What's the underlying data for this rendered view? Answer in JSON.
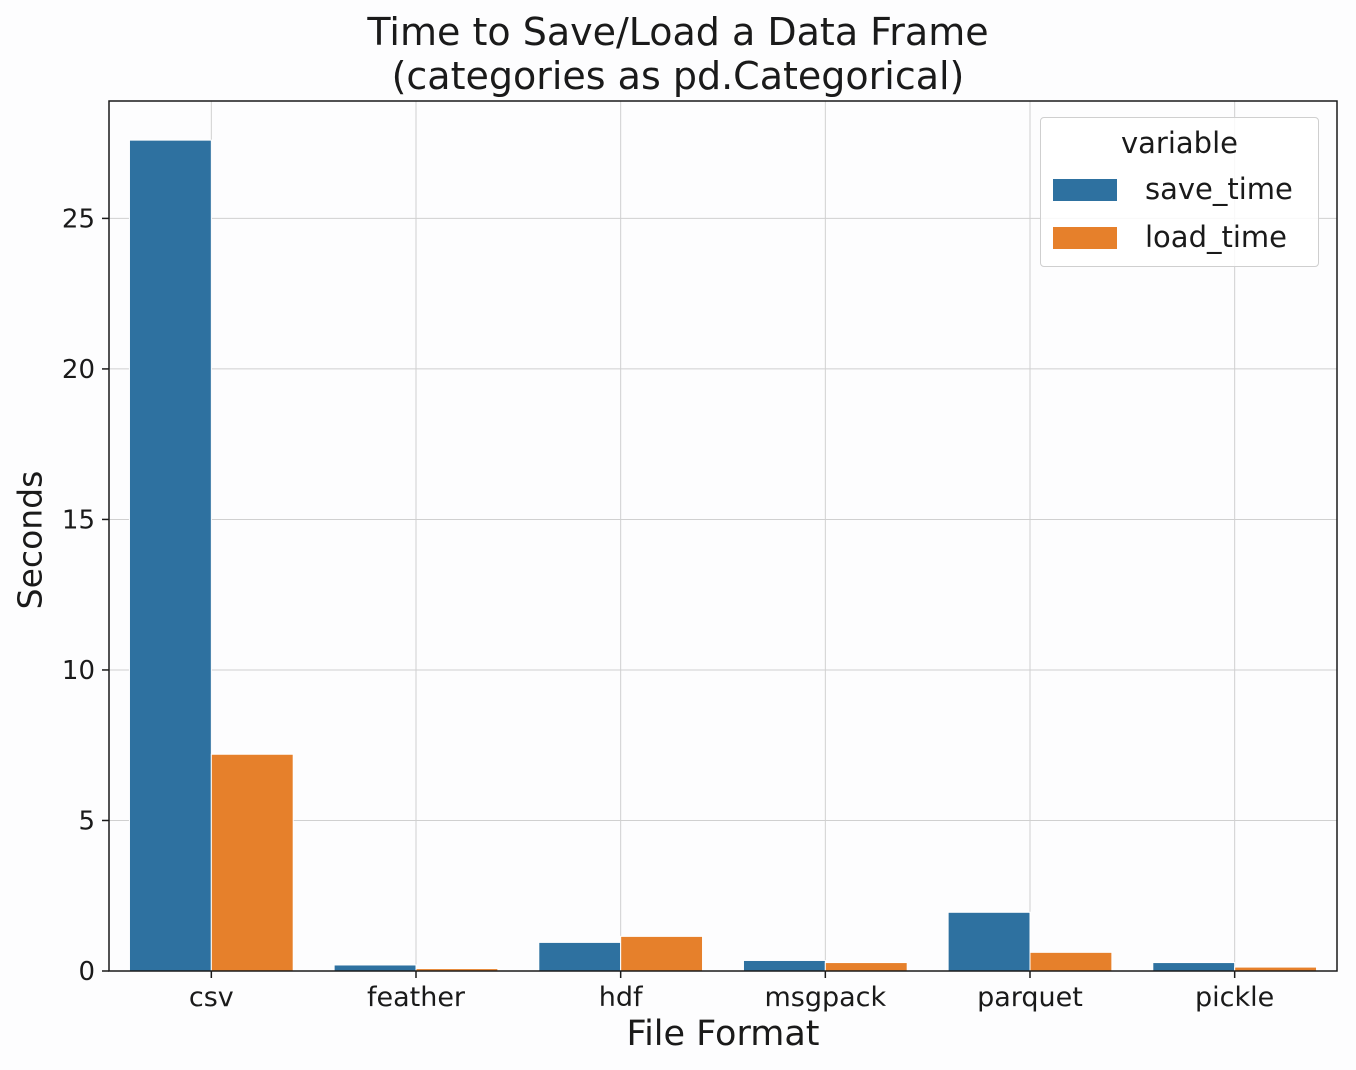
{
  "chart_data": {
    "type": "bar",
    "title": "Time to Save/Load a Data Frame",
    "subtitle": "(categories as pd.Categorical)",
    "xlabel": "File Format",
    "ylabel": "Seconds",
    "categories": [
      "csv",
      "feather",
      "hdf",
      "msgpack",
      "parquet",
      "pickle"
    ],
    "series": [
      {
        "name": "save_time",
        "color": "#2e71a0",
        "values": [
          27.6,
          0.2,
          0.95,
          0.35,
          1.95,
          0.28
        ]
      },
      {
        "name": "load_time",
        "color": "#e6802b",
        "values": [
          7.2,
          0.08,
          1.15,
          0.28,
          0.62,
          0.13
        ]
      }
    ],
    "ylim": [
      0,
      28.9
    ],
    "yticks": [
      0,
      5,
      10,
      15,
      20,
      25
    ],
    "grid": true,
    "legend": {
      "title": "variable",
      "placement": "top-right"
    }
  }
}
